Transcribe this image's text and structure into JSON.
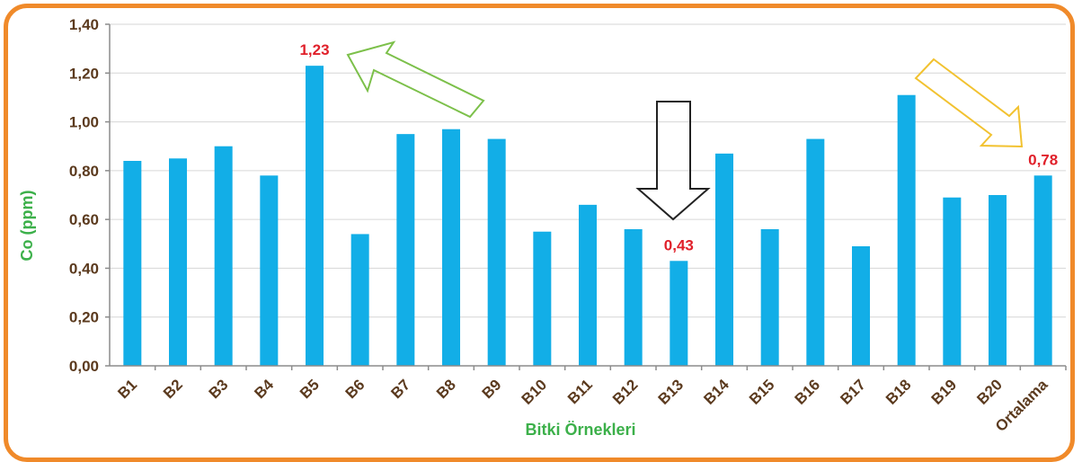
{
  "chart_data": {
    "type": "bar",
    "title": "",
    "xlabel": "Bitki Örnekleri",
    "ylabel": "Co (ppm)",
    "ylim": [
      0,
      1.4
    ],
    "y_ticks": [
      "0,00",
      "0,20",
      "0,40",
      "0,60",
      "0,80",
      "1,00",
      "1,20",
      "1,40"
    ],
    "grid": true,
    "categories": [
      "B1",
      "B2",
      "B3",
      "B4",
      "B5",
      "B6",
      "B7",
      "B8",
      "B9",
      "B10",
      "B11",
      "B12",
      "B13",
      "B14",
      "B15",
      "B16",
      "B17",
      "B18",
      "B19",
      "B20",
      "Ortalama"
    ],
    "values": [
      0.84,
      0.85,
      0.9,
      0.78,
      1.23,
      0.54,
      0.95,
      0.97,
      0.93,
      0.55,
      0.66,
      0.56,
      0.43,
      0.87,
      0.56,
      0.93,
      0.49,
      1.11,
      0.69,
      0.7,
      0.78
    ],
    "bar_color": "#12aee7",
    "annotations": [
      {
        "category": "B5",
        "text": "1,23",
        "arrow": "green-outline-arrow"
      },
      {
        "category": "B13",
        "text": "0,43",
        "arrow": "black-outline-arrow"
      },
      {
        "category": "Ortalama",
        "text": "0,78",
        "arrow": "yellow-outline-arrow"
      }
    ]
  },
  "colors": {
    "frame": "#f08a2a",
    "tick_text": "#5b3a1e",
    "axis_title": "#3cb04a",
    "annotation": "#e0202a",
    "arrow_green": "#7cc04a",
    "arrow_black": "#222222",
    "arrow_yellow": "#f2c230"
  }
}
